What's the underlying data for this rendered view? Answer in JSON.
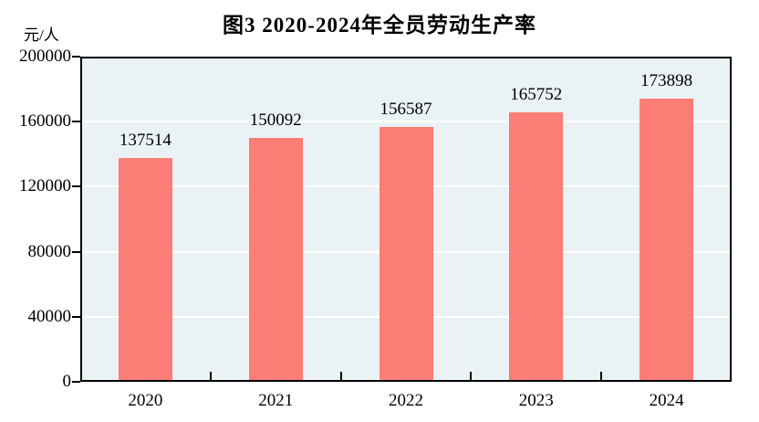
{
  "chart_data": {
    "type": "bar",
    "title": "图3  2020-2024年全员劳动生产率",
    "unit_label": "元/人",
    "categories": [
      "2020",
      "2021",
      "2022",
      "2023",
      "2024"
    ],
    "series": [
      {
        "name": "全员劳动生产率",
        "values": [
          137514,
          150092,
          156587,
          165752,
          173898
        ]
      }
    ],
    "value_labels": [
      "137514",
      "150092",
      "156587",
      "165752",
      "173898"
    ],
    "ylim": [
      0,
      200000
    ],
    "yticks": [
      0,
      40000,
      80000,
      120000,
      160000,
      200000
    ],
    "ytick_labels": [
      "0",
      "40000",
      "80000",
      "120000",
      "160000",
      "200000"
    ],
    "grid": "horizontal",
    "legend_position": "none",
    "colors": {
      "bar_fill": "#FA7D76",
      "plot_background": "#EBF2F5",
      "gridline": "#FFFFFF",
      "axis": "#000000",
      "text": "#000000",
      "page_background": "#FFFFFF"
    }
  }
}
